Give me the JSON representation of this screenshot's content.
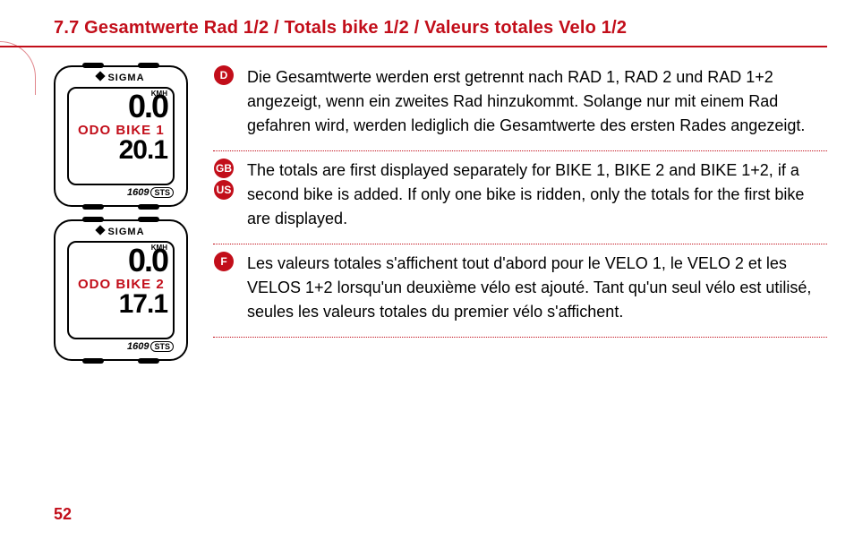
{
  "header": "7.7 Gesamtwerte Rad 1/2 / Totals bike 1/2 / Valeurs totales Velo 1/2",
  "devices": [
    {
      "brand": "SIGMA",
      "speed": "0.0",
      "unit": "KMH",
      "odo": "ODO BIKE 1",
      "value": "20.1",
      "model": "1609",
      "badge": "STS"
    },
    {
      "brand": "SIGMA",
      "speed": "0.0",
      "unit": "KMH",
      "odo": "ODO BIKE 2",
      "value": "17.1",
      "model": "1609",
      "badge": "STS"
    }
  ],
  "blocks": [
    {
      "badges": [
        "D"
      ],
      "text": "Die Gesamtwerte werden erst getrennt nach RAD 1, RAD 2 und RAD 1+2 angezeigt, wenn ein zweites Rad hinzukommt. Solange nur mit einem Rad gefahren wird, werden lediglich die Gesamtwerte des ersten Rades angezeigt."
    },
    {
      "badges": [
        "GB",
        "US"
      ],
      "text": "The totals are first displayed separately for BIKE 1, BIKE 2 and BIKE 1+2, if a second bike is added. If only one bike is ridden, only the totals for the first bike are displayed."
    },
    {
      "badges": [
        "F"
      ],
      "text": "Les valeurs totales s'affichent tout d'abord pour le VELO 1, le VELO 2 et les VELOS 1+2 lorsqu'un deuxième vélo est ajouté. Tant qu'un seul vélo est utilisé, seules les valeurs totales du premier vélo s'affichent."
    }
  ],
  "page_number": "52"
}
